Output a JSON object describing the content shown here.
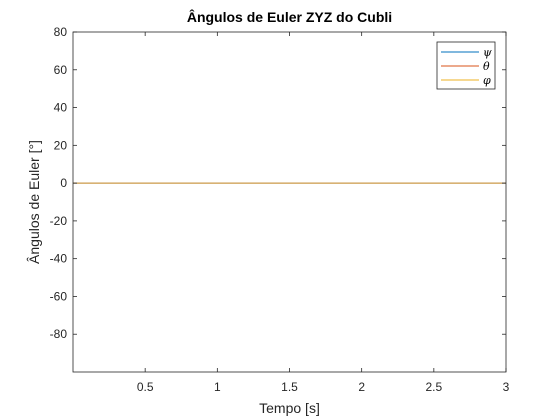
{
  "chart_data": {
    "type": "line",
    "title": "Ângulos de Euler ZYZ do Cubli",
    "xlabel": "Tempo [s]",
    "ylabel": "Ângulos de Euler [°]",
    "xlim": [
      0,
      3
    ],
    "ylim": [
      -100,
      80
    ],
    "xticks": [
      0.5,
      1,
      1.5,
      2,
      2.5,
      3
    ],
    "xtick_labels": [
      "0.5",
      "1",
      "1.5",
      "2",
      "2.5",
      "3"
    ],
    "yticks": [
      80,
      60,
      40,
      20,
      0,
      -20,
      -40,
      -60,
      -80
    ],
    "ytick_labels": [
      "80",
      "60",
      "40",
      "20",
      "0",
      "-20",
      "-40",
      "-60",
      "-80"
    ],
    "grid": false,
    "legend_position": "top-right",
    "series": [
      {
        "name": "ψ",
        "color": "#0072BD",
        "x": [
          0,
          3
        ],
        "y": [
          0,
          0
        ]
      },
      {
        "name": "θ",
        "color": "#D95319",
        "x": [
          0,
          3
        ],
        "y": [
          0,
          0
        ]
      },
      {
        "name": "φ",
        "color": "#EDB120",
        "x": [
          0,
          3
        ],
        "y": [
          0,
          0
        ]
      }
    ]
  }
}
